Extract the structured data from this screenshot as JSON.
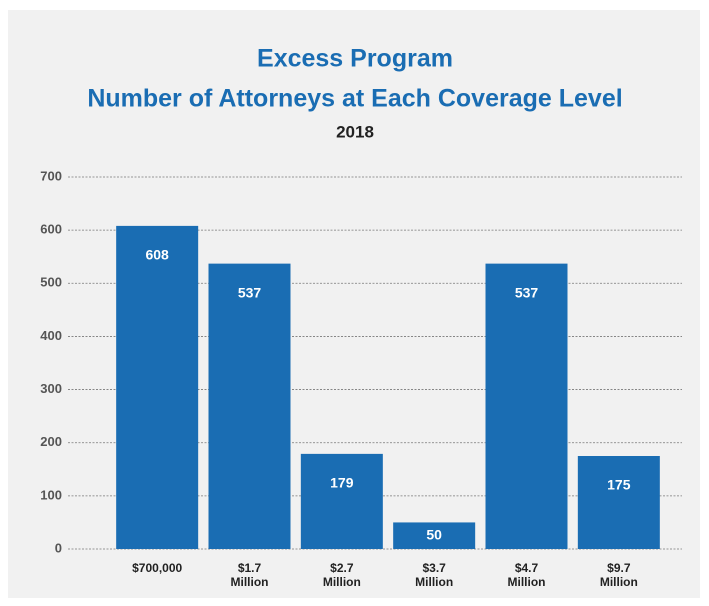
{
  "chart_data": {
    "type": "bar",
    "title": "Excess Program",
    "subtitle": "Number of Attorneys at Each Coverage Level",
    "caption": "2018",
    "categories": [
      "$700,000",
      "$1.7 Million",
      "$2.7 Million",
      "$3.7 Million",
      "$4.7 Million",
      "$9.7 Million"
    ],
    "values": [
      608,
      537,
      179,
      50,
      537,
      175
    ],
    "color": "#1a6db3",
    "ylim": [
      0,
      700
    ],
    "yticks": [
      0,
      100,
      200,
      300,
      400,
      500,
      600,
      700
    ],
    "grid": true
  }
}
